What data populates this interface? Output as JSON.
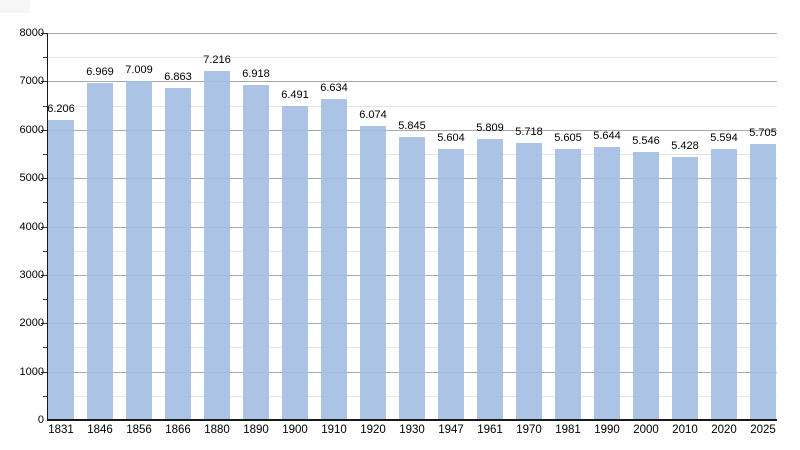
{
  "chart_data": {
    "type": "bar",
    "title": "",
    "xlabel": "",
    "ylabel": "",
    "categories": [
      "1831",
      "1846",
      "1856",
      "1866",
      "1880",
      "1890",
      "1900",
      "1910",
      "1920",
      "1930",
      "1947",
      "1961",
      "1970",
      "1981",
      "1990",
      "2000",
      "2010",
      "2020",
      "2025"
    ],
    "values": [
      6206,
      6969,
      7009,
      6863,
      7216,
      6918,
      6491,
      6634,
      6074,
      5845,
      5604,
      5809,
      5718,
      5605,
      5644,
      5546,
      5428,
      5594,
      5705
    ],
    "value_labels": [
      "6.206",
      "6.969",
      "7.009",
      "6.863",
      "7.216",
      "6.918",
      "6.491",
      "6.634",
      "6.074",
      "5.845",
      "5.604",
      "5.809",
      "5.718",
      "5.605",
      "5.644",
      "5.546",
      "5.428",
      "5.594",
      "5.705"
    ],
    "ylim": [
      0,
      8000
    ],
    "y_major_step": 1000,
    "y_minor_step": 500,
    "y_tick_labels": [
      "0",
      "1000",
      "2000",
      "3000",
      "4000",
      "5000",
      "6000",
      "7000",
      "8000"
    ],
    "grid": true,
    "legend": "none",
    "colors": {
      "bar_fill": "#ADC6E6",
      "grid_major": "#a9a9a9",
      "grid_minor": "#e4e4e4",
      "axis": "#1a1a1a",
      "text": "#000000",
      "background": "#ffffff"
    }
  }
}
